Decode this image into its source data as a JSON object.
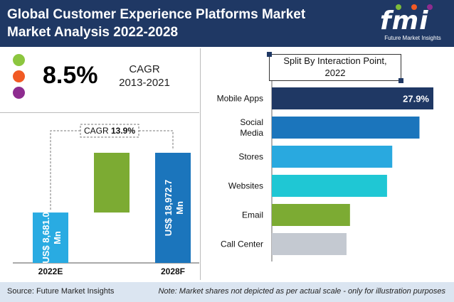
{
  "header": {
    "title_line1": "Global Customer Experience Platforms Market",
    "title_line2": "Market Analysis 2022-2028",
    "logo_word": "fmi",
    "logo_tagline": "Future Market Insights"
  },
  "legend_dots": [
    {
      "color": "#8cc63f"
    },
    {
      "color": "#f15a24"
    },
    {
      "color": "#8e2c8f"
    }
  ],
  "cagr": {
    "value": "8.5%",
    "label": "CAGR",
    "period": "2013-2021"
  },
  "split_title_line1": "Split By Interaction Point,",
  "split_title_line2": "2022",
  "footer": {
    "source": "Source: Future Market Insights",
    "note": "Note: Market shares not depicted as per actual scale - only for illustration purposes"
  },
  "chart_data": [
    {
      "type": "bar",
      "categories": [
        "2022E",
        "2028F"
      ],
      "values": [
        8681.0,
        18972.7
      ],
      "value_labels": [
        "US$ 8,681.0 Mn",
        "US$ 18,972.7 Mn"
      ],
      "cagr_annotation": {
        "label": "CAGR",
        "value": "13.9%"
      },
      "colors": {
        "bar_2022": "#29abe2",
        "bar_2028": "#1b75bc",
        "growth": "#7cab33"
      }
    },
    {
      "type": "bar",
      "orientation": "horizontal",
      "title": "Split By Interaction Point, 2022",
      "categories": [
        "Mobile Apps",
        "Social Media",
        "Stores",
        "Websites",
        "Email",
        "Call Center"
      ],
      "category_lines": [
        [
          "Mobile Apps"
        ],
        [
          "Social",
          "Media"
        ],
        [
          "Stores"
        ],
        [
          "Websites"
        ],
        [
          "Email"
        ],
        [
          "Call Center"
        ]
      ],
      "values": [
        27.9,
        25.5,
        20.8,
        19.9,
        13.5,
        12.9
      ],
      "labels": [
        "27.9%",
        "",
        "",
        "",
        "",
        ""
      ],
      "colors": [
        "#1f3864",
        "#1b75bc",
        "#29a9df",
        "#1fc7d4",
        "#7cab33",
        "#c4c9d1"
      ]
    }
  ]
}
